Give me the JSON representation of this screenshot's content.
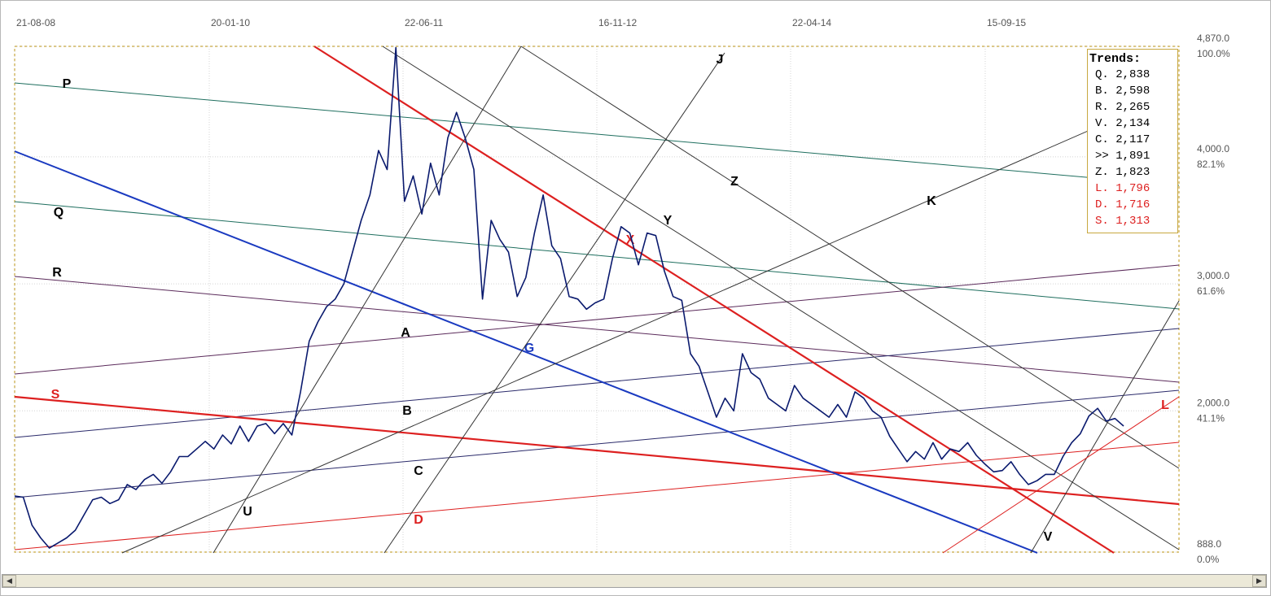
{
  "chart_data": {
    "type": "line",
    "x_ticks": [
      "21-08-08",
      "20-01-10",
      "22-06-11",
      "16-11-12",
      "22-04-14",
      "15-09-15"
    ],
    "y_ticks": [
      {
        "price": "4,870.0",
        "pct": "100.0%",
        "value": 4870
      },
      {
        "price": "4,000.0",
        "pct": "82.1%",
        "value": 4000
      },
      {
        "price": "3,000.0",
        "pct": "61.6%",
        "value": 3000
      },
      {
        "price": "2,000.0",
        "pct": "41.1%",
        "value": 2000
      },
      {
        "price": "888.0",
        "pct": "0.0%",
        "value": 888
      }
    ],
    "ylim": [
      888,
      4870
    ],
    "grid": true,
    "series": [
      {
        "color": "#0a1a6e",
        "points": [
          [
            0,
            1330
          ],
          [
            1,
            1320
          ],
          [
            2,
            1100
          ],
          [
            3,
            1000
          ],
          [
            4,
            920
          ],
          [
            5,
            960
          ],
          [
            6,
            1000
          ],
          [
            7,
            1060
          ],
          [
            8,
            1180
          ],
          [
            9,
            1300
          ],
          [
            10,
            1320
          ],
          [
            11,
            1270
          ],
          [
            12,
            1300
          ],
          [
            13,
            1420
          ],
          [
            14,
            1380
          ],
          [
            15,
            1460
          ],
          [
            16,
            1500
          ],
          [
            17,
            1430
          ],
          [
            18,
            1520
          ],
          [
            19,
            1640
          ],
          [
            20,
            1640
          ],
          [
            21,
            1700
          ],
          [
            22,
            1760
          ],
          [
            23,
            1700
          ],
          [
            24,
            1810
          ],
          [
            25,
            1740
          ],
          [
            26,
            1880
          ],
          [
            27,
            1760
          ],
          [
            28,
            1880
          ],
          [
            29,
            1900
          ],
          [
            30,
            1820
          ],
          [
            31,
            1900
          ],
          [
            32,
            1810
          ],
          [
            33,
            2150
          ],
          [
            34,
            2550
          ],
          [
            35,
            2700
          ],
          [
            36,
            2820
          ],
          [
            37,
            2880
          ],
          [
            38,
            3000
          ],
          [
            39,
            3250
          ],
          [
            40,
            3500
          ],
          [
            41,
            3700
          ],
          [
            42,
            4050
          ],
          [
            43,
            3900
          ],
          [
            44,
            4860
          ],
          [
            45,
            3650
          ],
          [
            46,
            3850
          ],
          [
            47,
            3550
          ],
          [
            48,
            3950
          ],
          [
            49,
            3700
          ],
          [
            50,
            4150
          ],
          [
            51,
            4350
          ],
          [
            52,
            4150
          ],
          [
            53,
            3900
          ],
          [
            54,
            2880
          ],
          [
            55,
            3500
          ],
          [
            56,
            3350
          ],
          [
            57,
            3250
          ],
          [
            58,
            2900
          ],
          [
            59,
            3050
          ],
          [
            60,
            3400
          ],
          [
            61,
            3700
          ],
          [
            62,
            3300
          ],
          [
            63,
            3200
          ],
          [
            64,
            2900
          ],
          [
            65,
            2880
          ],
          [
            66,
            2800
          ],
          [
            67,
            2850
          ],
          [
            68,
            2880
          ],
          [
            69,
            3200
          ],
          [
            70,
            3450
          ],
          [
            71,
            3400
          ],
          [
            72,
            3150
          ],
          [
            73,
            3400
          ],
          [
            74,
            3380
          ],
          [
            75,
            3100
          ],
          [
            76,
            2900
          ],
          [
            77,
            2870
          ],
          [
            78,
            2450
          ],
          [
            79,
            2350
          ],
          [
            80,
            2150
          ],
          [
            81,
            1950
          ],
          [
            82,
            2100
          ],
          [
            83,
            2000
          ],
          [
            84,
            2450
          ],
          [
            85,
            2300
          ],
          [
            86,
            2250
          ],
          [
            87,
            2100
          ],
          [
            88,
            2050
          ],
          [
            89,
            2000
          ],
          [
            90,
            2200
          ],
          [
            91,
            2100
          ],
          [
            92,
            2050
          ],
          [
            93,
            2000
          ],
          [
            94,
            1950
          ],
          [
            95,
            2050
          ],
          [
            96,
            1950
          ],
          [
            97,
            2150
          ],
          [
            98,
            2100
          ],
          [
            99,
            2000
          ],
          [
            100,
            1950
          ],
          [
            101,
            1800
          ],
          [
            102,
            1700
          ],
          [
            103,
            1600
          ],
          [
            104,
            1680
          ],
          [
            105,
            1620
          ],
          [
            106,
            1750
          ],
          [
            107,
            1620
          ],
          [
            108,
            1700
          ],
          [
            109,
            1680
          ],
          [
            110,
            1750
          ],
          [
            111,
            1650
          ],
          [
            112,
            1580
          ],
          [
            113,
            1520
          ],
          [
            114,
            1530
          ],
          [
            115,
            1600
          ],
          [
            116,
            1500
          ],
          [
            117,
            1420
          ],
          [
            118,
            1450
          ],
          [
            119,
            1500
          ],
          [
            120,
            1500
          ],
          [
            121,
            1640
          ],
          [
            122,
            1750
          ],
          [
            123,
            1820
          ],
          [
            124,
            1960
          ],
          [
            125,
            2020
          ],
          [
            126,
            1920
          ],
          [
            127,
            1940
          ],
          [
            128,
            1880
          ]
        ]
      }
    ],
    "trend_lines": [
      {
        "label": "P",
        "color": "#1e6e5e"
      },
      {
        "label": "Q",
        "color": "#1e6e5e"
      },
      {
        "label": "R",
        "color": "#5a2a5a"
      },
      {
        "label": "A",
        "color": "#5a2a5a"
      },
      {
        "label": "B",
        "color": "#2a2a6a"
      },
      {
        "label": "C",
        "color": "#2a2a6a"
      },
      {
        "label": "S",
        "color": "#dd2020"
      },
      {
        "label": "D",
        "color": "#dd2020"
      },
      {
        "label": "G",
        "color": "#1a3ac0"
      },
      {
        "label": "X",
        "color": "#dd2020"
      },
      {
        "label": "Y",
        "color": "#333333"
      },
      {
        "label": "Z",
        "color": "#333333"
      },
      {
        "label": "J",
        "color": "#333333"
      },
      {
        "label": "K",
        "color": "#333333"
      },
      {
        "label": "U",
        "color": "#333333"
      },
      {
        "label": "V",
        "color": "#333333"
      },
      {
        "label": "L",
        "color": "#dd2020"
      }
    ],
    "legend": {
      "title": "Trends:",
      "placement": "top-right",
      "items": [
        {
          "label": "Q.",
          "value": "2,838",
          "color": "#000000"
        },
        {
          "label": "B.",
          "value": "2,598",
          "color": "#000000"
        },
        {
          "label": "R.",
          "value": "2,265",
          "color": "#000000"
        },
        {
          "label": "V.",
          "value": "2,134",
          "color": "#000000"
        },
        {
          "label": "C.",
          "value": "2,117",
          "color": "#000000"
        },
        {
          "label": ">>",
          "value": "1,891",
          "color": "#000000"
        },
        {
          "label": "Z.",
          "value": "1,823",
          "color": "#000000"
        },
        {
          "label": "L.",
          "value": "1,796",
          "color": "#dd2020"
        },
        {
          "label": "D.",
          "value": "1,716",
          "color": "#dd2020"
        },
        {
          "label": "S.",
          "value": "1,313",
          "color": "#dd2020"
        }
      ]
    }
  },
  "scrollbar": {
    "left_arrow": "◀",
    "right_arrow": "▶"
  }
}
